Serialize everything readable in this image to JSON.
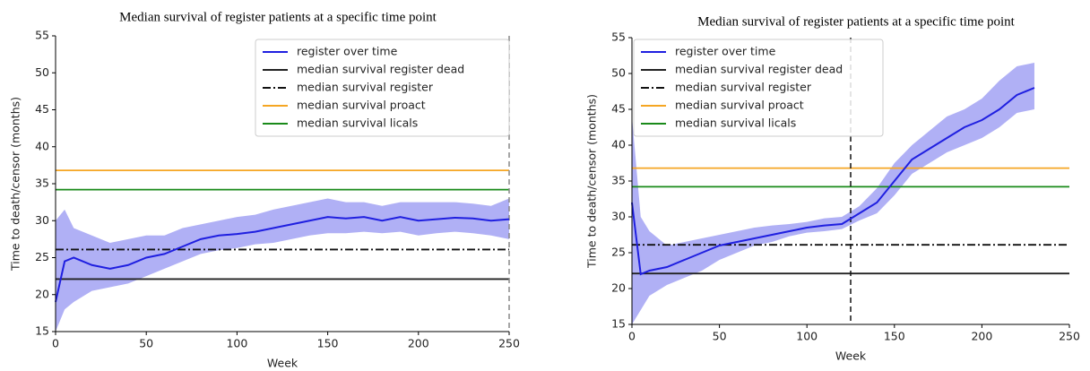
{
  "chart_data": [
    {
      "type": "line",
      "title": "Median survival of register patients at a specific time point",
      "x_label": "Week",
      "y_label": "Time to death/censor (months)",
      "xlim": [
        0,
        250
      ],
      "xticks": [
        0,
        50,
        100,
        150,
        200,
        250
      ],
      "ylim": [
        15,
        55
      ],
      "yticks": [
        15,
        20,
        25,
        30,
        35,
        40,
        45,
        50,
        55
      ],
      "x": [
        0,
        5,
        10,
        20,
        30,
        40,
        50,
        60,
        70,
        80,
        90,
        100,
        110,
        120,
        130,
        140,
        150,
        160,
        170,
        180,
        190,
        200,
        210,
        220,
        230,
        240,
        250
      ],
      "series": [
        {
          "name": "register over time",
          "color": "#1f1fe0",
          "band_color": "#b0b0f5",
          "values": [
            19,
            24.5,
            25,
            24,
            23.5,
            24,
            25,
            25.5,
            26.5,
            27.5,
            28,
            28.2,
            28.5,
            29,
            29.5,
            30,
            30.5,
            30.3,
            30.5,
            30,
            30.5,
            30,
            30.2,
            30.4,
            30.3,
            30,
            30.2
          ],
          "lower": [
            15,
            18,
            19,
            20.5,
            21,
            21.5,
            22.5,
            23.5,
            24.5,
            25.5,
            26,
            26.3,
            26.8,
            27,
            27.5,
            28,
            28.3,
            28.3,
            28.5,
            28.3,
            28.5,
            28,
            28.3,
            28.5,
            28.3,
            28,
            27.5
          ],
          "upper": [
            30,
            31.5,
            29,
            28,
            27,
            27.5,
            28,
            28,
            29,
            29.5,
            30,
            30.5,
            30.8,
            31.5,
            32,
            32.5,
            33,
            32.5,
            32.5,
            32,
            32.5,
            32.5,
            32.5,
            32.5,
            32.3,
            32,
            33
          ]
        }
      ],
      "hlines": [
        {
          "name": "median survival register dead",
          "color": "#222222",
          "style": "solid",
          "value": 22.1
        },
        {
          "name": "median survival register",
          "color": "#111111",
          "style": "dashdot",
          "value": 26.1
        },
        {
          "name": "median survival proact",
          "color": "#f5a623",
          "style": "solid",
          "value": 36.8
        },
        {
          "name": "median survival licals",
          "color": "#1a8a1a",
          "style": "solid",
          "value": 34.2
        }
      ],
      "vline": {
        "value": 250,
        "color": "#888888"
      }
    },
    {
      "type": "line",
      "title": "Median survival of register patients at a specific time point",
      "x_label": "Week",
      "y_label": "Time to death/censor (months)",
      "xlim": [
        0,
        250
      ],
      "xticks": [
        0,
        50,
        100,
        150,
        200,
        250
      ],
      "ylim": [
        15,
        55
      ],
      "yticks": [
        15,
        20,
        25,
        30,
        35,
        40,
        45,
        50,
        55
      ],
      "x": [
        0,
        5,
        10,
        20,
        30,
        40,
        50,
        60,
        70,
        80,
        90,
        100,
        110,
        120,
        130,
        140,
        150,
        160,
        170,
        180,
        190,
        200,
        210,
        220,
        230
      ],
      "series": [
        {
          "name": "register over time",
          "color": "#1f1fe0",
          "band_color": "#b0b0f5",
          "values": [
            32,
            22,
            22.5,
            23,
            24,
            25,
            26,
            26.5,
            27,
            27.5,
            28,
            28.5,
            28.8,
            29,
            30.5,
            32,
            35,
            38,
            39.5,
            41,
            42.5,
            43.5,
            45,
            47,
            48
          ],
          "lower": [
            15,
            17,
            19,
            20.5,
            21.5,
            22.5,
            24,
            25,
            26,
            26.5,
            27.3,
            27.8,
            28,
            28.3,
            29.5,
            30.5,
            33,
            36,
            37.5,
            39,
            40,
            41,
            42.5,
            44.5,
            45
          ],
          "upper": [
            44,
            30,
            28,
            26,
            26.5,
            27,
            27.5,
            28,
            28.5,
            28.8,
            29,
            29.3,
            29.8,
            30,
            31.5,
            34,
            37.5,
            40,
            42,
            44,
            45,
            46.5,
            49,
            51,
            51.5
          ]
        }
      ],
      "hlines": [
        {
          "name": "median survival register dead",
          "color": "#222222",
          "style": "solid",
          "value": 22.1
        },
        {
          "name": "median survival register",
          "color": "#111111",
          "style": "dashdot",
          "value": 26.1
        },
        {
          "name": "median survival proact",
          "color": "#f5a623",
          "style": "solid",
          "value": 36.8
        },
        {
          "name": "median survival licals",
          "color": "#1a8a1a",
          "style": "solid",
          "value": 34.2
        }
      ],
      "vline": {
        "value": 125,
        "color": "#111111"
      }
    }
  ]
}
